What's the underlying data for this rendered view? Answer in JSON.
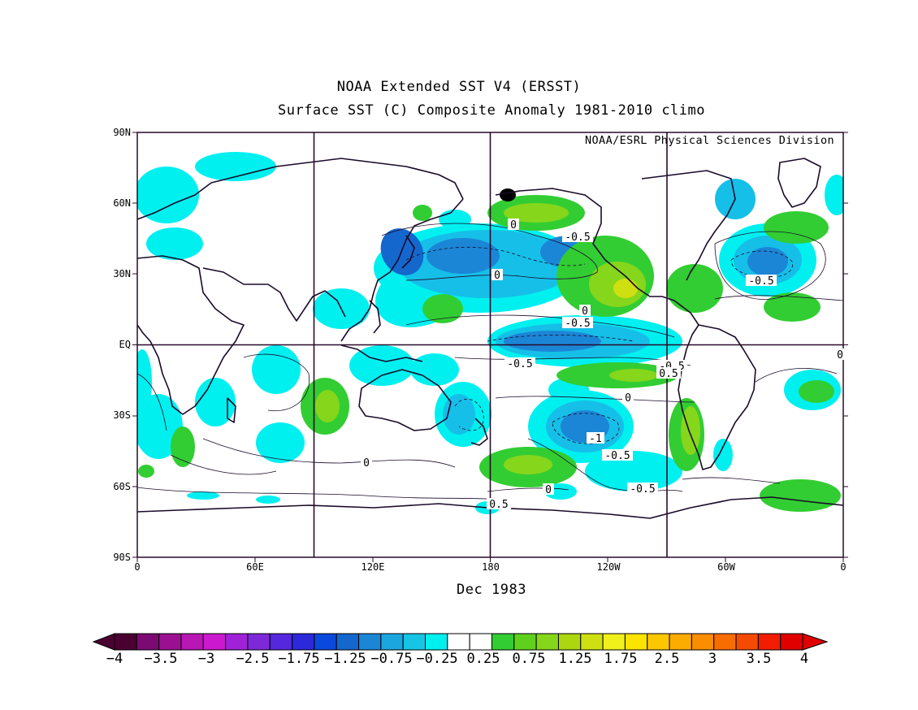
{
  "title": "NOAA Extended SST V4 (ERSST)",
  "subtitle": "Surface SST (C) Composite Anomaly 1981-2010 climo",
  "credit": "NOAA/ESRL Physical Sciences Division",
  "date_label": "Dec 1983",
  "lat_labels": [
    "90N",
    "60N",
    "30N",
    "EQ",
    "30S",
    "60S",
    "90S"
  ],
  "lon_labels": [
    "0",
    "60E",
    "120E",
    "180",
    "120W",
    "60W",
    "0"
  ],
  "contour_labels": [
    "0",
    "-0.5",
    "0",
    "-0.5",
    "-0.5",
    "0",
    "-0.5",
    "-0.5",
    "0.5",
    "0",
    "-1",
    "-0.5",
    "0",
    "-0.5",
    "0.5",
    "0",
    "0"
  ],
  "colorbar": {
    "labels": [
      "-4",
      "-3.5",
      "-3",
      "-2.5",
      "-1.75",
      "-1.25",
      "-0.75",
      "-0.25",
      "0.25",
      "0.75",
      "1.25",
      "1.75",
      "2.5",
      "3",
      "3.5",
      "4"
    ],
    "colors": [
      "#4b0032",
      "#7b0b72",
      "#9b1091",
      "#b816b5",
      "#cc19cf",
      "#9f22d8",
      "#7e29d9",
      "#5527dd",
      "#2b29d9",
      "#0b48dd",
      "#1467cc",
      "#1b86d6",
      "#1ba6e0",
      "#16c5e6",
      "#00f0f0",
      "#ffffff",
      "#ffffff",
      "#32cd32",
      "#5fd11d",
      "#86d61b",
      "#abd610",
      "#cfe012",
      "#f0f01a",
      "#fbe400",
      "#fcc700",
      "#fcac00",
      "#fa8d00",
      "#f76d00",
      "#f44b00",
      "#f21d00",
      "#e00000"
    ]
  },
  "colors": {
    "frame": "#2a0a2a",
    "coast": "#1a0a2a",
    "cyan": "#00f0f0",
    "lightblue": "#16bfe8",
    "blue": "#1b86d6",
    "deepblue": "#1467cc",
    "green": "#32cd32",
    "lightgreen": "#86d61b",
    "yellowgreen": "#cfe012"
  }
}
